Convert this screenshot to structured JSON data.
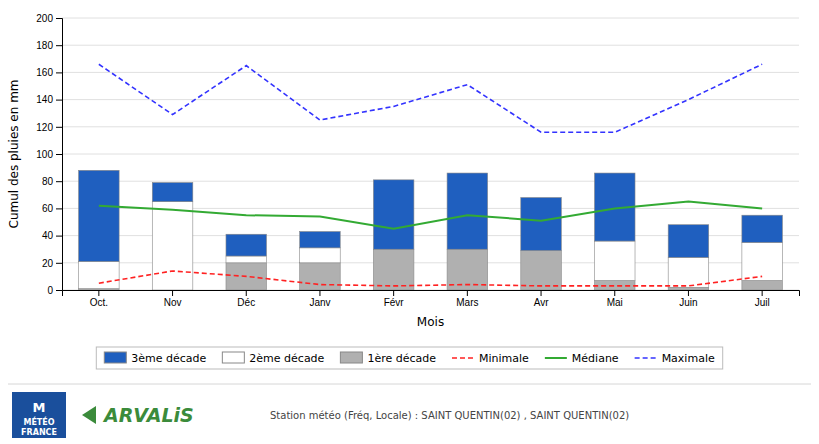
{
  "chart_data": {
    "type": "bar",
    "stacked": true,
    "categories": [
      "Oct.",
      "Nov",
      "Déc",
      "Janv",
      "Févr",
      "Mars",
      "Avr",
      "Mai",
      "Juin",
      "Juil"
    ],
    "series": [
      {
        "name": "1ère décade",
        "type": "bar",
        "color": "#B0B0B0",
        "values": [
          1,
          0,
          20,
          20,
          30,
          30,
          29,
          7,
          2,
          7
        ]
      },
      {
        "name": "2ème décade",
        "type": "bar",
        "color": "#FFFFFF",
        "values": [
          20,
          65,
          5,
          11,
          0,
          0,
          0,
          29,
          22,
          28
        ]
      },
      {
        "name": "3ème décade",
        "type": "bar",
        "color": "#1F5FBF",
        "values": [
          67,
          14,
          16,
          12,
          51,
          56,
          39,
          50,
          24,
          20
        ]
      },
      {
        "name": "Minimale",
        "type": "line",
        "color": "#FF2222",
        "line_style": "dashed",
        "values": [
          5,
          14,
          10,
          4,
          3,
          4,
          3,
          3,
          3,
          10
        ]
      },
      {
        "name": "Médiane",
        "type": "line",
        "color": "#33AA33",
        "line_style": "solid",
        "values": [
          62,
          59,
          55,
          54,
          45,
          55,
          51,
          60,
          65,
          60
        ]
      },
      {
        "name": "Maximale",
        "type": "line",
        "color": "#3333FF",
        "line_style": "dashed",
        "values": [
          166,
          129,
          165,
          125,
          135,
          151,
          116,
          116,
          140,
          166
        ]
      }
    ],
    "x_label": "Mois",
    "y_label": "Cumul des pluies en mm",
    "ylim": [
      0,
      200
    ],
    "yticks": [
      0,
      20,
      40,
      60,
      80,
      100,
      120,
      140,
      160,
      180,
      200
    ],
    "grid": true,
    "legend": "bottom",
    "annotations": [
      "Station météo (Fréq, Locale) : SAINT QUENTIN(02) , SAINT QUENTIN(02)",
      "M",
      "MÉTÉO",
      "FRANCE",
      "ARVALiS"
    ]
  }
}
